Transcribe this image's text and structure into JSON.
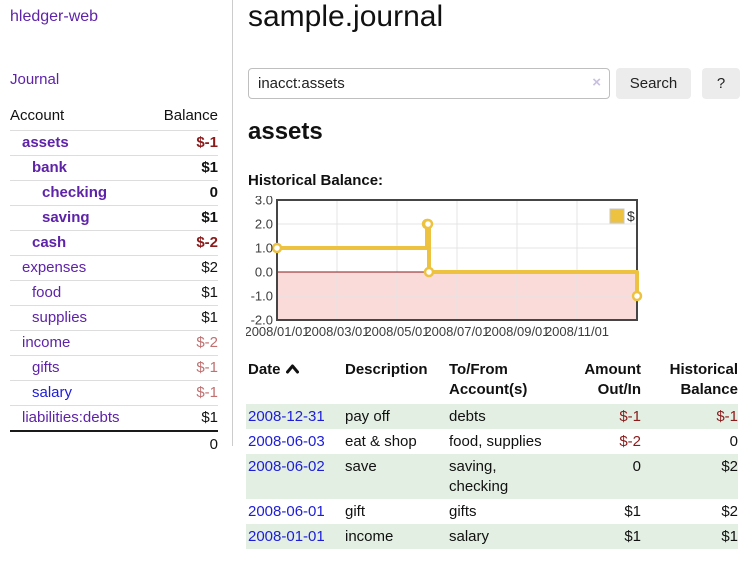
{
  "app": {
    "brand": "hledger-web",
    "nav_journal": "Journal"
  },
  "sidebar": {
    "account_header": "Account",
    "balance_header": "Balance",
    "rows": [
      {
        "name": "assets",
        "depth": 0,
        "bold": true,
        "color": "purple",
        "balance": "$-1",
        "tone": "neg"
      },
      {
        "name": "bank",
        "depth": 1,
        "bold": true,
        "color": "purple",
        "balance": "$1",
        "tone": "pos"
      },
      {
        "name": "checking",
        "depth": 2,
        "bold": true,
        "color": "purple",
        "balance": "0",
        "tone": "pos"
      },
      {
        "name": "saving",
        "depth": 2,
        "bold": true,
        "color": "purple",
        "balance": "$1",
        "tone": "pos"
      },
      {
        "name": "cash",
        "depth": 1,
        "bold": true,
        "color": "purple",
        "balance": "$-2",
        "tone": "neg"
      },
      {
        "name": "expenses",
        "depth": 0,
        "bold": false,
        "color": "purple",
        "balance": "$2",
        "tone": "pos"
      },
      {
        "name": "food",
        "depth": 1,
        "bold": false,
        "color": "purple",
        "balance": "$1",
        "tone": "pos"
      },
      {
        "name": "supplies",
        "depth": 1,
        "bold": false,
        "color": "purple",
        "balance": "$1",
        "tone": "pos"
      },
      {
        "name": "income",
        "depth": 0,
        "bold": false,
        "color": "purple",
        "balance": "$-2",
        "tone": "negsoft"
      },
      {
        "name": "gifts",
        "depth": 1,
        "bold": false,
        "color": "purple",
        "balance": "$-1",
        "tone": "negsoft"
      },
      {
        "name": "salary",
        "depth": 1,
        "bold": false,
        "color": "blue",
        "balance": "$-1",
        "tone": "negsoft"
      },
      {
        "name": "liabilities:debts",
        "depth": 0,
        "bold": false,
        "color": "purple",
        "balance": "$1",
        "tone": "pos"
      }
    ],
    "total": "0"
  },
  "main": {
    "title": "sample.journal",
    "search": {
      "value": "inacct:assets",
      "clear_icon": "×",
      "button_label": "Search",
      "help_label": "?"
    },
    "account_heading": "assets",
    "register": {
      "headers": {
        "date": "Date",
        "sort_icon": "chevron-up",
        "description": "Description",
        "accounts": "To/From Account(s)",
        "amount": "Amount Out/In",
        "balance": "Historical Balance"
      },
      "rows": [
        {
          "date": "2008-12-31",
          "description": "pay off",
          "accounts": "debts",
          "amount": "$-1",
          "amount_neg": true,
          "balance": "$-1",
          "balance_neg": true
        },
        {
          "date": "2008-06-03",
          "description": "eat & shop",
          "accounts": "food, supplies",
          "amount": "$-2",
          "amount_neg": true,
          "balance": "0",
          "balance_neg": false
        },
        {
          "date": "2008-06-02",
          "description": "save",
          "accounts": "saving, checking",
          "amount": "0",
          "amount_neg": false,
          "balance": "$2",
          "balance_neg": false
        },
        {
          "date": "2008-06-01",
          "description": "gift",
          "accounts": "gifts",
          "amount": "$1",
          "amount_neg": false,
          "balance": "$2",
          "balance_neg": false
        },
        {
          "date": "2008-01-01",
          "description": "income",
          "accounts": "salary",
          "amount": "$1",
          "amount_neg": false,
          "balance": "$1",
          "balance_neg": false
        }
      ]
    }
  },
  "chart_data": {
    "type": "line",
    "title": "Historical Balance:",
    "step": true,
    "series": [
      {
        "name": "$",
        "color": "#edc240",
        "points": [
          [
            "2008-01-01",
            1
          ],
          [
            "2008-06-01",
            2
          ],
          [
            "2008-06-02",
            2
          ],
          [
            "2008-06-03",
            0
          ],
          [
            "2008-12-31",
            -1
          ]
        ]
      }
    ],
    "x_ticks": [
      "2008/01/01",
      "2008/03/01",
      "2008/05/01",
      "2008/07/01",
      "2008/09/01",
      "2008/11/01"
    ],
    "y_ticks": [
      "3.0",
      "2.0",
      "1.0",
      "0.0",
      "-1.0",
      "-2.0"
    ],
    "ylim": [
      -2,
      3
    ],
    "x_range_months": 12,
    "grid": true,
    "legend_position": "top-right",
    "negative_region_fill": "#fbdada",
    "zero_line_color": "#8b1a1a",
    "grid_color": "#e4e4e4",
    "border_color": "#454545"
  },
  "colors": {
    "accent_purple": "#5e23a8",
    "link_blue": "#1d1dd8",
    "negative_strong": "#8b1a1a",
    "negative_soft": "#c0706f",
    "row_green": "#e3efe3",
    "chart_gold": "#edc240",
    "button_bg": "#ececec",
    "divider": "#cccccc"
  }
}
